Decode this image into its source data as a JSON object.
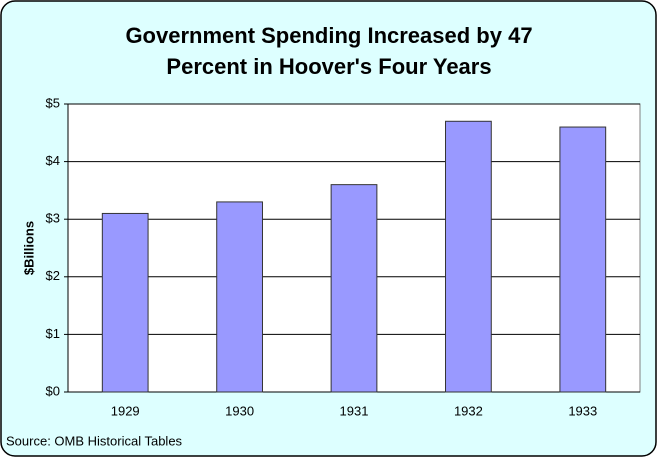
{
  "chart_data": {
    "type": "bar",
    "title": "Government Spending Increased by 47 Percent in Hoover's Four Years",
    "y_label": "$Billions",
    "source": "Source: OMB Historical Tables",
    "categories": [
      "1929",
      "1930",
      "1931",
      "1932",
      "1933"
    ],
    "values": [
      3.1,
      3.3,
      3.6,
      4.7,
      4.6
    ],
    "color": "#9999ff",
    "ylim": [
      0,
      5
    ],
    "yticks": [
      {
        "value": 0,
        "label": "$0"
      },
      {
        "value": 1,
        "label": "$1"
      },
      {
        "value": 2,
        "label": "$2"
      },
      {
        "value": 3,
        "label": "$3"
      },
      {
        "value": 4,
        "label": "$4"
      },
      {
        "value": 5,
        "label": "$5"
      }
    ],
    "grid": true
  }
}
